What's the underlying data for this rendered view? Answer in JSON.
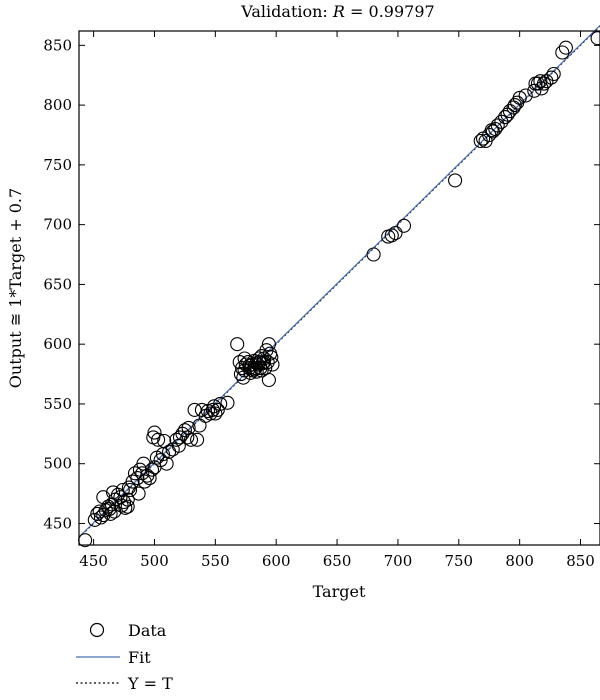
{
  "chart_data": {
    "type": "scatter",
    "title_prefix": "Validation: ",
    "title_var": "R",
    "title_value": " = 0.99797",
    "xlabel": "Target",
    "ylabel": "Output ≅ 1*Target + 0.7",
    "xlim": [
      438,
      866
    ],
    "ylim": [
      432,
      862
    ],
    "xticks": [
      450,
      500,
      550,
      600,
      650,
      700,
      750,
      800,
      850
    ],
    "yticks": [
      450,
      500,
      550,
      600,
      650,
      700,
      750,
      800,
      850
    ],
    "grid": false,
    "legend_placement": "below",
    "legend": [
      {
        "label": "Data",
        "marker": "circle"
      },
      {
        "label": "Fit",
        "line": "solid",
        "color": "#4a6fb5"
      },
      {
        "label": "Y = T",
        "line": "dotted",
        "color": "#000000"
      }
    ],
    "fit": {
      "slope": 1,
      "intercept": 0.7
    },
    "series": [
      {
        "name": "Data",
        "points": [
          [
            443,
            436
          ],
          [
            451,
            453
          ],
          [
            453,
            458
          ],
          [
            455,
            460
          ],
          [
            456,
            455
          ],
          [
            458,
            457
          ],
          [
            460,
            461
          ],
          [
            462,
            464
          ],
          [
            463,
            462
          ],
          [
            458,
            472
          ],
          [
            464,
            458
          ],
          [
            465,
            466
          ],
          [
            467,
            460
          ],
          [
            468,
            470
          ],
          [
            466,
            476
          ],
          [
            470,
            474
          ],
          [
            472,
            472
          ],
          [
            474,
            478
          ],
          [
            475,
            468
          ],
          [
            476,
            463
          ],
          [
            473,
            465
          ],
          [
            478,
            470
          ],
          [
            479,
            480
          ],
          [
            480,
            478
          ],
          [
            482,
            485
          ],
          [
            478,
            464
          ],
          [
            484,
            492
          ],
          [
            486,
            488
          ],
          [
            488,
            495
          ],
          [
            487,
            475
          ],
          [
            490,
            492
          ],
          [
            491,
            500
          ],
          [
            492,
            485
          ],
          [
            494,
            490
          ],
          [
            496,
            488
          ],
          [
            498,
            495
          ],
          [
            500,
            497
          ],
          [
            502,
            505
          ],
          [
            499,
            522
          ],
          [
            500,
            526
          ],
          [
            503,
            520
          ],
          [
            505,
            503
          ],
          [
            507,
            508
          ],
          [
            508,
            519
          ],
          [
            510,
            500
          ],
          [
            512,
            510
          ],
          [
            515,
            512
          ],
          [
            518,
            520
          ],
          [
            520,
            515
          ],
          [
            521,
            522
          ],
          [
            523,
            525
          ],
          [
            525,
            528
          ],
          [
            527,
            522
          ],
          [
            528,
            530
          ],
          [
            530,
            520
          ],
          [
            533,
            545
          ],
          [
            535,
            520
          ],
          [
            537,
            532
          ],
          [
            539,
            545
          ],
          [
            542,
            540
          ],
          [
            544,
            544
          ],
          [
            546,
            542
          ],
          [
            548,
            545
          ],
          [
            549,
            548
          ],
          [
            550,
            542
          ],
          [
            552,
            545
          ],
          [
            554,
            550
          ],
          [
            560,
            551
          ],
          [
            568,
            600
          ],
          [
            570,
            585
          ],
          [
            571,
            575
          ],
          [
            572,
            580
          ],
          [
            573,
            572
          ],
          [
            574,
            588
          ],
          [
            575,
            583
          ],
          [
            577,
            585
          ],
          [
            578,
            580
          ],
          [
            579,
            576
          ],
          [
            580,
            583
          ],
          [
            581,
            578
          ],
          [
            582,
            586
          ],
          [
            583,
            580
          ],
          [
            584,
            577
          ],
          [
            585,
            583
          ],
          [
            586,
            585
          ],
          [
            587,
            580
          ],
          [
            588,
            590
          ],
          [
            589,
            584
          ],
          [
            590,
            588
          ],
          [
            591,
            580
          ],
          [
            592,
            595
          ],
          [
            593,
            585
          ],
          [
            594,
            600
          ],
          [
            594,
            570
          ],
          [
            595,
            592
          ],
          [
            596,
            589
          ],
          [
            597,
            583
          ],
          [
            590,
            585
          ],
          [
            586,
            588
          ],
          [
            584,
            584
          ],
          [
            582,
            579
          ],
          [
            588,
            578
          ],
          [
            680,
            675
          ],
          [
            692,
            690
          ],
          [
            695,
            691
          ],
          [
            698,
            693
          ],
          [
            705,
            699
          ],
          [
            747,
            737
          ],
          [
            768,
            770
          ],
          [
            770,
            772
          ],
          [
            772,
            770
          ],
          [
            775,
            775
          ],
          [
            778,
            778
          ],
          [
            780,
            780
          ],
          [
            782,
            783
          ],
          [
            785,
            786
          ],
          [
            788,
            790
          ],
          [
            790,
            792
          ],
          [
            792,
            795
          ],
          [
            795,
            798
          ],
          [
            798,
            802
          ],
          [
            800,
            806
          ],
          [
            805,
            808
          ],
          [
            812,
            812
          ],
          [
            815,
            818
          ],
          [
            817,
            820
          ],
          [
            820,
            818
          ],
          [
            822,
            820
          ],
          [
            826,
            823
          ],
          [
            828,
            826
          ],
          [
            835,
            844
          ],
          [
            838,
            848
          ],
          [
            864,
            856
          ],
          [
            777,
            779
          ],
          [
            796,
            800
          ],
          [
            818,
            814
          ],
          [
            813,
            818
          ],
          [
            574,
            578
          ],
          [
            578,
            582
          ]
        ]
      }
    ]
  }
}
